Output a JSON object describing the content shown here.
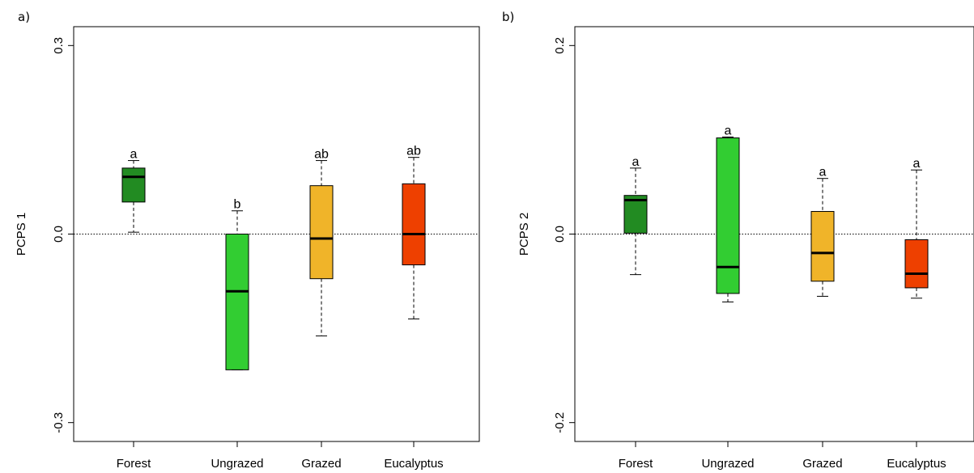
{
  "chart_data": [
    {
      "panel_label": "a)",
      "type": "box",
      "ylabel": "PCPS 1",
      "ylim": [
        -0.33,
        0.33
      ],
      "yticks": [
        {
          "value": -0.3,
          "label": "-0.3"
        },
        {
          "value": 0.0,
          "label": "0.0"
        },
        {
          "value": 0.3,
          "label": "0.3"
        }
      ],
      "reference_line": 0.0,
      "categories": [
        "Forest",
        "Ungrazed",
        "Grazed",
        "Eucalyptus"
      ],
      "boxes": [
        {
          "category": "Forest",
          "min": 0.003,
          "q1": 0.051,
          "median": 0.091,
          "q3": 0.105,
          "max": 0.117,
          "color": "#228B22",
          "letter": "a"
        },
        {
          "category": "Ungrazed",
          "min": -0.216,
          "q1": -0.216,
          "median": -0.091,
          "q3": 0.0,
          "max": 0.037,
          "color": "#32CD32",
          "letter": "b"
        },
        {
          "category": "Grazed",
          "min": -0.162,
          "q1": -0.071,
          "median": -0.007,
          "q3": 0.077,
          "max": 0.117,
          "color": "#F0B429",
          "letter": "ab"
        },
        {
          "category": "Eucalyptus",
          "min": -0.135,
          "q1": -0.049,
          "median": 0.0,
          "q3": 0.08,
          "max": 0.122,
          "color": "#EE4000",
          "letter": "ab"
        }
      ]
    },
    {
      "panel_label": "b)",
      "type": "box",
      "ylabel": "PCPS 2",
      "ylim": [
        -0.22,
        0.22
      ],
      "yticks": [
        {
          "value": -0.2,
          "label": "-0.2"
        },
        {
          "value": 0.0,
          "label": "0.0"
        },
        {
          "value": 0.2,
          "label": "0.2"
        }
      ],
      "reference_line": 0.0,
      "categories": [
        "Forest",
        "Ungrazed",
        "Grazed",
        "Eucalyptus"
      ],
      "boxes": [
        {
          "category": "Forest",
          "min": -0.043,
          "q1": 0.001,
          "median": 0.036,
          "q3": 0.041,
          "max": 0.07,
          "color": "#228B22",
          "letter": "a"
        },
        {
          "category": "Ungrazed",
          "min": -0.072,
          "q1": -0.063,
          "median": -0.035,
          "q3": 0.102,
          "max": 0.103,
          "color": "#32CD32",
          "letter": "a"
        },
        {
          "category": "Grazed",
          "min": -0.066,
          "q1": -0.05,
          "median": -0.02,
          "q3": 0.024,
          "max": 0.059,
          "color": "#F0B429",
          "letter": "a"
        },
        {
          "category": "Eucalyptus",
          "min": -0.068,
          "q1": -0.057,
          "median": -0.042,
          "q3": -0.006,
          "max": 0.068,
          "color": "#EE4000",
          "letter": "a"
        }
      ]
    }
  ]
}
